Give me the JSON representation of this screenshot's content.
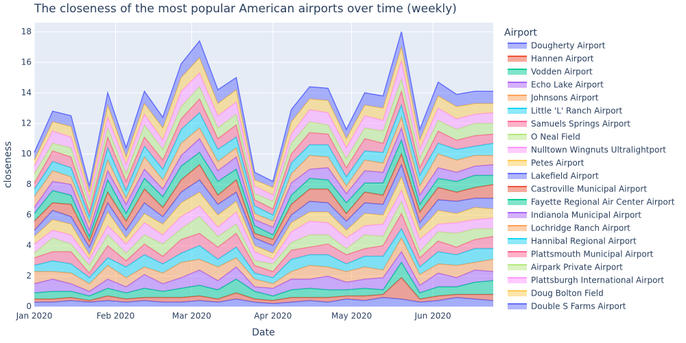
{
  "chart_data": {
    "type": "area",
    "stacked": true,
    "title": "The closeness of the most popular American airports over time (weekly)",
    "xlabel": "Date",
    "ylabel": "closeness",
    "legend_title": "Airport",
    "legend": "right",
    "grid": true,
    "x": [
      "2020-01-01",
      "2020-01-08",
      "2020-01-15",
      "2020-01-22",
      "2020-01-29",
      "2020-02-05",
      "2020-02-12",
      "2020-02-19",
      "2020-02-26",
      "2020-03-04",
      "2020-03-11",
      "2020-03-18",
      "2020-03-25",
      "2020-04-01",
      "2020-04-08",
      "2020-04-15",
      "2020-04-22",
      "2020-04-29",
      "2020-05-06",
      "2020-05-13",
      "2020-05-20",
      "2020-05-27",
      "2020-06-03",
      "2020-06-10",
      "2020-06-17",
      "2020-06-24"
    ],
    "xlim": [
      "2020-01-01",
      "2020-06-24"
    ],
    "xticks": [
      {
        "value": "2020-01-01",
        "label": "Jan 2020"
      },
      {
        "value": "2020-02-01",
        "label": "Feb 2020"
      },
      {
        "value": "2020-03-01",
        "label": "Mar 2020"
      },
      {
        "value": "2020-04-01",
        "label": "Apr 2020"
      },
      {
        "value": "2020-05-01",
        "label": "May 2020"
      },
      {
        "value": "2020-06-01",
        "label": "Jun 2020"
      }
    ],
    "ylim": [
      0,
      18.6
    ],
    "yticks": [
      0,
      2,
      4,
      6,
      8,
      10,
      12,
      14,
      16,
      18
    ],
    "series": [
      {
        "name": "Dougherty Airport",
        "color": "#636efa",
        "values": [
          0.3,
          0.3,
          0.4,
          0.3,
          0.4,
          0.3,
          0.4,
          0.3,
          0.3,
          0.4,
          0.3,
          0.5,
          0.3,
          0.2,
          0.3,
          0.4,
          0.3,
          0.5,
          0.4,
          0.6,
          0.5,
          0.3,
          0.4,
          0.6,
          0.5,
          0.4
        ]
      },
      {
        "name": "Hannen Airport",
        "color": "#EF553B",
        "values": [
          0.2,
          0.2,
          0.2,
          0.1,
          0.3,
          0.2,
          0.2,
          0.3,
          0.3,
          0.3,
          0.2,
          0.4,
          0.2,
          0.2,
          0.3,
          0.2,
          0.3,
          0.2,
          0.3,
          0.2,
          1.4,
          0.2,
          0.3,
          0.2,
          0.3,
          0.4
        ]
      },
      {
        "name": "Vodden Airport",
        "color": "#00cc96",
        "values": [
          0.4,
          0.5,
          0.4,
          0.3,
          0.5,
          0.4,
          0.6,
          0.4,
          0.6,
          0.7,
          0.6,
          0.9,
          0.5,
          0.3,
          0.5,
          0.6,
          0.5,
          0.4,
          0.5,
          0.3,
          1.0,
          0.4,
          0.6,
          0.5,
          0.8,
          0.9
        ]
      },
      {
        "name": "Echo Lake Airport",
        "color": "#ab63fa",
        "values": [
          0.6,
          0.8,
          0.5,
          0.3,
          0.6,
          0.4,
          0.9,
          0.5,
          0.7,
          1.0,
          0.6,
          0.8,
          0.3,
          0.5,
          0.7,
          0.6,
          0.9,
          0.5,
          0.6,
          0.8,
          0.7,
          0.5,
          0.9,
          0.6,
          0.8,
          0.6
        ]
      },
      {
        "name": "Johnsons Airport",
        "color": "#FFA15A",
        "values": [
          0.8,
          0.5,
          0.7,
          0.5,
          0.9,
          0.6,
          0.5,
          0.7,
          1.0,
          0.7,
          0.9,
          0.6,
          0.5,
          0.3,
          0.5,
          0.9,
          0.6,
          0.7,
          0.8,
          0.5,
          0.9,
          0.7,
          0.6,
          0.8,
          0.5,
          0.8
        ]
      },
      {
        "name": "Little 'L' Ranch Airport",
        "color": "#19d3f3",
        "values": [
          0.4,
          0.7,
          0.6,
          0.4,
          0.5,
          0.7,
          0.8,
          0.6,
          0.6,
          0.9,
          0.5,
          0.7,
          0.4,
          0.4,
          0.8,
          0.7,
          0.8,
          0.5,
          0.7,
          0.9,
          0.6,
          0.5,
          0.8,
          0.7,
          0.9,
          0.7
        ]
      },
      {
        "name": "Samuels Springs Airport",
        "color": "#FF6692",
        "values": [
          0.5,
          0.6,
          0.8,
          0.3,
          0.8,
          0.4,
          0.7,
          0.5,
          0.9,
          0.8,
          0.8,
          0.9,
          0.5,
          0.4,
          0.6,
          0.5,
          0.7,
          0.6,
          0.5,
          0.7,
          1.0,
          0.6,
          0.7,
          0.5,
          0.6,
          0.8
        ]
      },
      {
        "name": "O Neal Field",
        "color": "#B6E880",
        "values": [
          0.3,
          0.9,
          0.5,
          0.5,
          0.7,
          0.5,
          0.6,
          0.8,
          0.7,
          1.1,
          0.7,
          0.6,
          0.3,
          0.5,
          0.5,
          0.8,
          0.6,
          0.4,
          0.9,
          0.6,
          0.8,
          0.4,
          0.6,
          0.9,
          0.7,
          0.5
        ]
      },
      {
        "name": "Nulltown Wingnuts Ultralightport",
        "color": "#FF97FF",
        "values": [
          0.6,
          0.5,
          0.6,
          0.4,
          0.6,
          0.6,
          0.8,
          0.6,
          0.8,
          0.7,
          0.6,
          0.8,
          0.6,
          0.3,
          0.7,
          0.9,
          0.8,
          0.7,
          0.6,
          0.8,
          0.7,
          0.8,
          0.5,
          0.7,
          0.6,
          0.7
        ]
      },
      {
        "name": "Petes Airport",
        "color": "#FECB52",
        "values": [
          0.5,
          0.7,
          0.7,
          0.3,
          0.9,
          0.4,
          0.6,
          0.7,
          0.9,
          0.9,
          0.8,
          0.7,
          0.4,
          0.4,
          0.6,
          0.6,
          0.7,
          0.5,
          0.8,
          0.6,
          0.9,
          0.6,
          0.9,
          0.6,
          0.8,
          0.6
        ]
      },
      {
        "name": "Lakefield Airport",
        "color": "#636efa",
        "values": [
          0.4,
          0.6,
          0.5,
          0.5,
          0.6,
          0.5,
          0.7,
          0.5,
          0.7,
          0.8,
          0.7,
          0.6,
          0.5,
          0.5,
          0.5,
          0.7,
          0.6,
          0.6,
          0.7,
          0.7,
          0.8,
          0.5,
          0.7,
          0.8,
          0.6,
          0.7
        ]
      },
      {
        "name": "Castroville Municipal Airport",
        "color": "#EF553B",
        "values": [
          0.6,
          0.5,
          0.8,
          0.4,
          0.7,
          0.6,
          0.9,
          0.6,
          0.8,
          1.0,
          0.6,
          0.8,
          0.3,
          0.4,
          0.7,
          0.8,
          0.9,
          0.5,
          0.7,
          0.6,
          0.7,
          0.7,
          0.8,
          0.6,
          0.7,
          0.9
        ]
      },
      {
        "name": "Fayette Regional Air Center Airport",
        "color": "#00cc96",
        "values": [
          0.5,
          0.8,
          0.6,
          0.3,
          0.8,
          0.5,
          0.7,
          0.7,
          0.9,
          0.8,
          0.9,
          0.7,
          0.5,
          0.3,
          0.6,
          0.7,
          0.6,
          0.7,
          0.6,
          0.8,
          0.9,
          0.5,
          0.6,
          0.7,
          0.8,
          0.6
        ]
      },
      {
        "name": "Indianola Municipal Airport",
        "color": "#ab63fa",
        "values": [
          0.4,
          0.6,
          0.7,
          0.4,
          0.6,
          0.6,
          0.6,
          0.5,
          0.7,
          0.9,
          0.7,
          0.8,
          0.4,
          0.5,
          0.8,
          0.6,
          0.8,
          0.6,
          0.8,
          0.7,
          0.8,
          0.6,
          0.7,
          0.6,
          0.6,
          0.7
        ]
      },
      {
        "name": "Lochridge Ranch Airport",
        "color": "#FFA15A",
        "values": [
          0.7,
          0.7,
          0.5,
          0.5,
          0.7,
          0.4,
          0.8,
          0.6,
          0.8,
          0.7,
          0.6,
          0.6,
          0.4,
          0.4,
          0.6,
          0.9,
          0.7,
          0.5,
          0.7,
          0.6,
          0.7,
          0.6,
          0.9,
          0.8,
          0.7,
          0.6
        ]
      },
      {
        "name": "Hannibal Regional Airport",
        "color": "#19d3f3",
        "values": [
          0.5,
          0.6,
          0.6,
          0.4,
          0.8,
          0.5,
          0.7,
          0.7,
          0.9,
          1.0,
          0.8,
          0.7,
          0.5,
          0.4,
          0.7,
          0.7,
          0.8,
          0.6,
          0.6,
          0.7,
          0.8,
          0.7,
          0.7,
          0.7,
          0.6,
          0.8
        ]
      },
      {
        "name": "Plattsmouth Municipal Airport",
        "color": "#FF6692",
        "values": [
          0.4,
          0.7,
          0.7,
          0.3,
          0.7,
          0.6,
          0.6,
          0.6,
          0.7,
          0.9,
          0.7,
          0.8,
          0.4,
          0.4,
          0.6,
          0.8,
          0.7,
          0.6,
          0.8,
          0.6,
          0.9,
          0.5,
          0.8,
          0.6,
          0.7,
          0.6
        ]
      },
      {
        "name": "Airpark Private Airport",
        "color": "#B6E880",
        "values": [
          0.6,
          0.5,
          0.6,
          0.5,
          0.6,
          0.5,
          0.8,
          0.7,
          0.8,
          0.8,
          0.7,
          0.7,
          0.4,
          0.5,
          0.7,
          0.7,
          0.6,
          0.6,
          0.7,
          0.8,
          0.8,
          0.6,
          0.7,
          0.7,
          0.8,
          0.7
        ]
      },
      {
        "name": "Plattsburgh International Airport",
        "color": "#FF97FF",
        "values": [
          0.5,
          0.8,
          0.7,
          0.4,
          0.7,
          0.6,
          0.7,
          0.6,
          1.0,
          0.9,
          0.8,
          0.8,
          0.5,
          0.4,
          0.6,
          0.8,
          0.8,
          0.7,
          0.8,
          0.7,
          1.2,
          0.6,
          0.8,
          0.7,
          0.6,
          0.7
        ]
      },
      {
        "name": "Doug Bolton Field",
        "color": "#FECB52",
        "values": [
          0.4,
          0.6,
          0.7,
          0.4,
          0.8,
          0.5,
          0.7,
          0.8,
          0.9,
          1.0,
          0.8,
          0.8,
          0.4,
          0.5,
          0.8,
          0.7,
          0.8,
          0.6,
          0.7,
          0.8,
          0.9,
          0.6,
          0.8,
          0.8,
          0.7,
          0.6
        ]
      },
      {
        "name": "Double S Farms Airport",
        "color": "#636efa",
        "values": [
          0.5,
          0.7,
          0.7,
          0.4,
          0.8,
          0.6,
          0.8,
          0.7,
          0.9,
          1.1,
          0.9,
          0.8,
          0.5,
          0.4,
          0.8,
          0.8,
          0.8,
          0.6,
          0.8,
          0.8,
          1.0,
          0.7,
          0.9,
          0.8,
          0.8,
          0.8
        ]
      }
    ]
  }
}
